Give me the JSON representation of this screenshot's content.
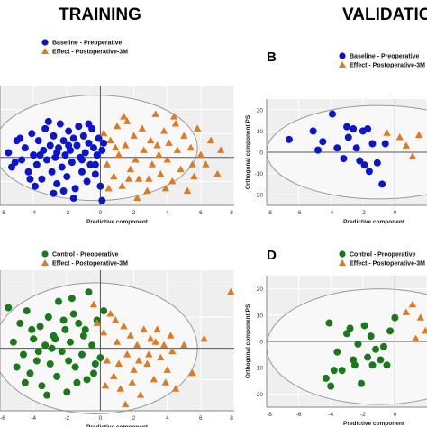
{
  "headers": {
    "training": "TRAINING",
    "validation": "VALIDATION"
  },
  "colors": {
    "blue": "#0a14d2",
    "orange": "#e07a1f",
    "green": "#1a7a1a",
    "plot_bg": "#efefef",
    "grid": "#ffffff",
    "axis": "#555555"
  },
  "chart_data": [
    {
      "panel": "training-top",
      "type": "scatter",
      "xlabel": "Predictive component",
      "ylabel": "",
      "xlim": [
        -6,
        8
      ],
      "ylim": [
        -20,
        30
      ],
      "x_ticks": [
        "-6",
        "-4",
        "-2",
        "0",
        "2",
        "4",
        "6",
        "8"
      ],
      "y_ticks": [],
      "legend": [
        "Baseline - Preoperative",
        "Effect - Postoperative-3M"
      ],
      "series": [
        {
          "name": "Baseline - Preoperative",
          "marker": "circle",
          "color": "blue",
          "points": [
            [
              -5.5,
              2
            ],
            [
              -5.3,
              -4
            ],
            [
              -5,
              7
            ],
            [
              -4.7,
              -1
            ],
            [
              -4.5,
              4
            ],
            [
              -4.3,
              -6
            ],
            [
              -4.1,
              10
            ],
            [
              -4,
              1
            ],
            [
              -3.8,
              -3
            ],
            [
              -3.7,
              7
            ],
            [
              -3.5,
              -9
            ],
            [
              -3.4,
              3
            ],
            [
              -3.3,
              12
            ],
            [
              -3.2,
              -1
            ],
            [
              -3,
              5
            ],
            [
              -2.9,
              -6
            ],
            [
              -2.8,
              9
            ],
            [
              -2.7,
              0
            ],
            [
              -2.6,
              -11
            ],
            [
              -2.5,
              4
            ],
            [
              -2.4,
              14
            ],
            [
              -2.3,
              -4
            ],
            [
              -2.2,
              7
            ],
            [
              -2.1,
              1
            ],
            [
              -2,
              -8
            ],
            [
              -1.9,
              11
            ],
            [
              -1.8,
              3
            ],
            [
              -1.7,
              -2
            ],
            [
              -1.6,
              8
            ],
            [
              -1.5,
              -13
            ],
            [
              -1.4,
              5
            ],
            [
              -1.3,
              13
            ],
            [
              -1.2,
              0
            ],
            [
              -1.1,
              -6
            ],
            [
              -1,
              9
            ],
            [
              -0.9,
              2
            ],
            [
              -0.8,
              -10
            ],
            [
              -0.7,
              6
            ],
            [
              -0.6,
              -3
            ],
            [
              -0.5,
              12
            ],
            [
              -0.4,
              4
            ],
            [
              -0.3,
              -7
            ],
            [
              -0.2,
              1
            ],
            [
              -0.1,
              8
            ],
            [
              0,
              -12
            ],
            [
              0.1,
              3
            ],
            [
              0.1,
              -18
            ],
            [
              -3.9,
              -12
            ],
            [
              -2.8,
              -15
            ],
            [
              -1.6,
              -17
            ],
            [
              -4.8,
              8
            ],
            [
              -3.1,
              15
            ],
            [
              -2.2,
              -14
            ],
            [
              -0.7,
              14
            ],
            [
              -1.9,
              5
            ],
            [
              -2.6,
              2
            ],
            [
              -3.6,
              1
            ],
            [
              -1.1,
              -1
            ],
            [
              -0.3,
              -3
            ],
            [
              0.2,
              6
            ],
            [
              -4.2,
              -9
            ],
            [
              -5.1,
              -2
            ]
          ]
        },
        {
          "name": "Effect - Postoperative-3M",
          "marker": "triangle",
          "color": "orange",
          "points": [
            [
              0.2,
              10
            ],
            [
              0.4,
              -3
            ],
            [
              0.6,
              7
            ],
            [
              0.8,
              -8
            ],
            [
              1,
              13
            ],
            [
              1.1,
              1
            ],
            [
              1.3,
              -12
            ],
            [
              1.5,
              5
            ],
            [
              1.6,
              15
            ],
            [
              1.8,
              -5
            ],
            [
              2,
              9
            ],
            [
              2.1,
              -1
            ],
            [
              2.3,
              -9
            ],
            [
              2.5,
              12
            ],
            [
              2.6,
              3
            ],
            [
              2.8,
              -14
            ],
            [
              3,
              7
            ],
            [
              3.1,
              -3
            ],
            [
              3.3,
              18
            ],
            [
              3.5,
              1
            ],
            [
              3.6,
              -7
            ],
            [
              3.8,
              11
            ],
            [
              4,
              -1
            ],
            [
              4.1,
              6
            ],
            [
              4.3,
              -10
            ],
            [
              4.5,
              14
            ],
            [
              4.6,
              3
            ],
            [
              4.8,
              -5
            ],
            [
              5,
              9
            ],
            [
              5.2,
              -14
            ],
            [
              5.4,
              4
            ],
            [
              5.6,
              -8
            ],
            [
              5.8,
              12
            ],
            [
              6,
              1
            ],
            [
              6.3,
              -3
            ],
            [
              6.6,
              7
            ],
            [
              7,
              -7
            ],
            [
              7.2,
              3
            ],
            [
              2.2,
              -17
            ],
            [
              3.9,
              -13
            ],
            [
              1.4,
              17
            ],
            [
              0.9,
              4
            ],
            [
              2.9,
              -9
            ],
            [
              4.4,
              17
            ],
            [
              5.5,
              -3
            ],
            [
              1.7,
              -9
            ],
            [
              3.4,
              5
            ],
            [
              0.5,
              -13
            ]
          ]
        }
      ]
    },
    {
      "panel": "validation-top",
      "label": "B",
      "type": "scatter",
      "xlabel": "Predictive component",
      "ylabel": "Orthogonal component PS",
      "xlim": [
        -8,
        2
      ],
      "ylim": [
        -25,
        25
      ],
      "x_ticks": [
        "-8",
        "-6",
        "-4",
        "-2",
        "0"
      ],
      "y_ticks": [
        "20",
        "10",
        "0",
        "-10",
        "-20"
      ],
      "legend": [
        "Baseline - Preoperative",
        "Effect - Postoperative-3M"
      ],
      "series": [
        {
          "name": "Baseline - Preoperative",
          "marker": "circle",
          "color": "blue",
          "points": [
            [
              -6.6,
              6
            ],
            [
              -5.1,
              10
            ],
            [
              -4.8,
              1
            ],
            [
              -4.5,
              5
            ],
            [
              -3.9,
              18
            ],
            [
              -3.6,
              2
            ],
            [
              -3.2,
              -3
            ],
            [
              -3,
              12
            ],
            [
              -2.9,
              7
            ],
            [
              -2.6,
              11
            ],
            [
              -2.4,
              2
            ],
            [
              -2.2,
              -4
            ],
            [
              -2,
              10
            ],
            [
              -1.9,
              -6
            ],
            [
              -1.7,
              11
            ],
            [
              -1.6,
              -9
            ],
            [
              -1.4,
              4
            ],
            [
              -1.1,
              -5
            ],
            [
              -0.8,
              -15
            ],
            [
              -0.6,
              4
            ]
          ]
        },
        {
          "name": "Effect - Postoperative-3M",
          "marker": "triangle",
          "color": "orange",
          "points": [
            [
              -0.5,
              9
            ],
            [
              0.3,
              7
            ],
            [
              0.7,
              3
            ],
            [
              1.1,
              -2
            ],
            [
              1.5,
              8
            ]
          ]
        }
      ]
    },
    {
      "panel": "training-bottom",
      "type": "scatter",
      "xlabel": "Predictive component",
      "ylabel": "",
      "xlim": [
        -6,
        8
      ],
      "ylim": [
        -20,
        25
      ],
      "x_ticks": [
        "-6",
        "-4",
        "-2",
        "0",
        "2",
        "4",
        "6",
        "8"
      ],
      "y_ticks": [],
      "legend": [
        "Control - Preoperative",
        "Effect - Postoperative-3M"
      ],
      "series": [
        {
          "name": "Control - Preoperative",
          "marker": "circle",
          "color": "green",
          "points": [
            [
              -5.5,
              13
            ],
            [
              -5.2,
              2
            ],
            [
              -5,
              -6
            ],
            [
              -4.8,
              8
            ],
            [
              -4.6,
              -2
            ],
            [
              -4.4,
              12
            ],
            [
              -4.2,
              -8
            ],
            [
              -4,
              3
            ],
            [
              -3.8,
              -4
            ],
            [
              -3.6,
              7
            ],
            [
              -3.5,
              -12
            ],
            [
              -3.3,
              1
            ],
            [
              -3.1,
              10
            ],
            [
              -3,
              -5
            ],
            [
              -2.8,
              4
            ],
            [
              -2.6,
              -9
            ],
            [
              -2.5,
              15
            ],
            [
              -2.3,
              -1
            ],
            [
              -2.1,
              6
            ],
            [
              -2,
              -14
            ],
            [
              -1.8,
              2
            ],
            [
              -1.6,
              11
            ],
            [
              -1.5,
              -6
            ],
            [
              -1.3,
              8
            ],
            [
              -1.1,
              -2
            ],
            [
              -1,
              4
            ],
            [
              -0.8,
              -10
            ],
            [
              -0.7,
              18
            ],
            [
              -0.5,
              1
            ],
            [
              -0.3,
              -5
            ],
            [
              -0.2,
              9
            ],
            [
              0,
              -3
            ],
            [
              0.2,
              12
            ],
            [
              -2.9,
              0
            ],
            [
              -3.7,
              -1
            ],
            [
              -1.9,
              -4
            ],
            [
              -4.1,
              6
            ],
            [
              -2.2,
              9
            ],
            [
              -1.4,
              -11
            ],
            [
              -0.9,
              6
            ],
            [
              -3.2,
              -15
            ],
            [
              -2.7,
              3
            ],
            [
              -1.7,
              16
            ],
            [
              -4.5,
              -11
            ],
            [
              -0.4,
              -8
            ]
          ]
        },
        {
          "name": "Effect - Postoperative-3M",
          "marker": "triangle",
          "color": "orange",
          "points": [
            [
              -0.4,
              14
            ],
            [
              -0.2,
              8
            ],
            [
              0.2,
              5
            ],
            [
              0.4,
              -4
            ],
            [
              0.6,
              11
            ],
            [
              0.8,
              -9
            ],
            [
              1,
              2
            ],
            [
              1.2,
              -13
            ],
            [
              1.4,
              7
            ],
            [
              1.6,
              -2
            ],
            [
              1.8,
              4
            ],
            [
              2,
              -7
            ],
            [
              2.2,
              1
            ],
            [
              2.4,
              -15
            ],
            [
              2.6,
              6
            ],
            [
              2.8,
              -5
            ],
            [
              3,
              3
            ],
            [
              3.2,
              -10
            ],
            [
              3.4,
              6
            ],
            [
              3.6,
              -3
            ],
            [
              3.8,
              1
            ],
            [
              4,
              -7
            ],
            [
              4.2,
              4
            ],
            [
              4.5,
              -13
            ],
            [
              5,
              1
            ],
            [
              5.5,
              -8
            ],
            [
              6.2,
              3
            ],
            [
              7.8,
              18
            ],
            [
              0.3,
              -12
            ],
            [
              1.1,
              -5
            ],
            [
              1.9,
              -11
            ],
            [
              2.9,
              -2
            ],
            [
              3.9,
              -11
            ],
            [
              4.3,
              -1
            ],
            [
              0.9,
              9
            ],
            [
              2.3,
              -4
            ],
            [
              3.3,
              2
            ],
            [
              1.5,
              -18
            ]
          ]
        }
      ]
    },
    {
      "panel": "validation-bottom",
      "label": "D",
      "type": "scatter",
      "xlabel": "Predictive component",
      "ylabel": "Orthogonal component PS",
      "xlim": [
        -8,
        2
      ],
      "ylim": [
        -25,
        25
      ],
      "x_ticks": [
        "-8",
        "-6",
        "-4",
        "-2",
        "0"
      ],
      "y_ticks": [
        "20",
        "10",
        "0",
        "-10",
        "-20"
      ],
      "legend": [
        "Control - Preoperative",
        "Effect - Postoperative-3M"
      ],
      "series": [
        {
          "name": "Control - Preoperative",
          "marker": "circle",
          "color": "green",
          "points": [
            [
              -4.3,
              -14
            ],
            [
              -4,
              -17
            ],
            [
              -4.1,
              7
            ],
            [
              -3.6,
              -4
            ],
            [
              -3.3,
              -11
            ],
            [
              -3,
              3
            ],
            [
              -2.8,
              5
            ],
            [
              -2.5,
              -9
            ],
            [
              -2.3,
              -1
            ],
            [
              -2.1,
              -16
            ],
            [
              -1.9,
              6
            ],
            [
              -1.7,
              -6
            ],
            [
              -1.5,
              2
            ],
            [
              -1.2,
              -3
            ],
            [
              -0.9,
              -7
            ],
            [
              -0.7,
              -2
            ],
            [
              -0.5,
              -9
            ],
            [
              -0.3,
              4
            ],
            [
              0,
              9
            ],
            [
              -2.6,
              -7
            ],
            [
              -3.8,
              -11
            ],
            [
              -1.4,
              -9
            ]
          ]
        },
        {
          "name": "Effect - Postoperative-3M",
          "marker": "triangle",
          "color": "orange",
          "points": [
            [
              0.7,
              11
            ],
            [
              1.1,
              14
            ],
            [
              1.3,
              1
            ],
            [
              1.6,
              9
            ],
            [
              1.9,
              4
            ]
          ]
        }
      ]
    }
  ]
}
